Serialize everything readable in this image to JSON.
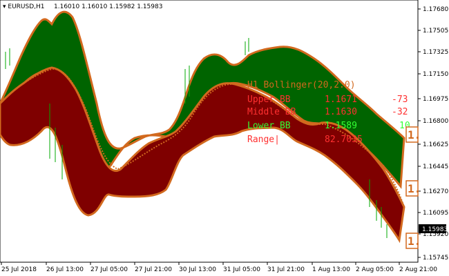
{
  "title": {
    "symbol": "EURUSD,H1",
    "ohlc": "1.16010 1.16010 1.15982 1.15983"
  },
  "price_axis": {
    "labels": [
      "1.17680",
      "1.17505",
      "1.17325",
      "1.17150",
      "1.16975",
      "1.16800",
      "1.16625",
      "1.16445",
      "1.16270",
      "1.16095",
      "1.15920",
      "1.15745"
    ],
    "current_price": "1.15983"
  },
  "time_axis": {
    "labels": [
      "25 Jul 2018",
      "26 Jul 13:00",
      "27 Jul 05:00",
      "27 Jul 21:00",
      "30 Jul 13:00",
      "31 Jul 05:00",
      "31 Jul 21:00",
      "1 Aug 13:00",
      "2 Aug 05:00",
      "2 Aug 21:00"
    ]
  },
  "indicator_panel": {
    "title": "H1 Bollinger(20,2.0)",
    "upper_label": "Upper BB",
    "upper_value": "1.1671",
    "upper_change": "-73",
    "middle_label": "Middle BB",
    "middle_value": "1.1630",
    "middle_change": "-32",
    "lower_label": "Lower BB",
    "lower_value": "1.1589",
    "lower_change": "10",
    "range_label": "Range|",
    "range_value": "82.7035"
  },
  "band_labels": {
    "upper": "1.",
    "middle": "1.",
    "lower": "1."
  },
  "colors": {
    "upper_band": "#006400",
    "lower_band": "#7f0000",
    "band_edge": "#d2691e",
    "candles": "#00aa00",
    "title_color": "#d2691e",
    "upper_text": "#ff3030",
    "middle_text": "#ff3030",
    "lower_text": "#33ff33",
    "range_text": "#ff3030"
  }
}
